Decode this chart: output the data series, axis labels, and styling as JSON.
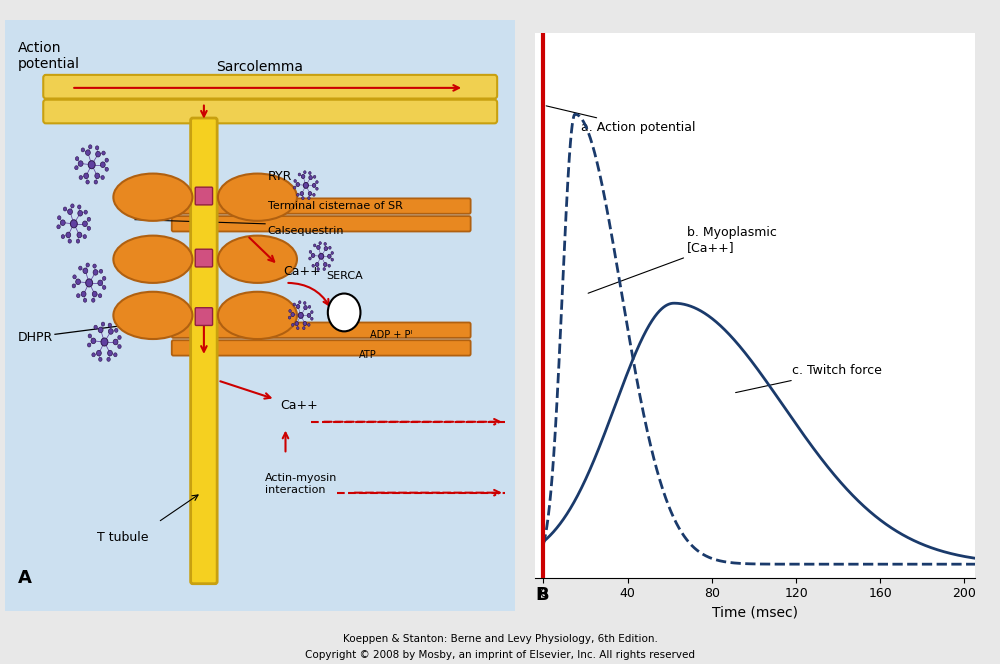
{
  "bg_color": "#cce0f0",
  "panel_bg": "#ffffff",
  "fig_bg": "#e8e8e8",
  "label_fontsize": 9,
  "small_fontsize": 8,
  "curve_color": "#1a3a6b",
  "ap_color": "#cc0000",
  "sarco_color": "#f0d050",
  "sarco_edge": "#c8a010",
  "sr_color": "#e88820",
  "sr_edge": "#b06010",
  "tt_color": "#f5d020",
  "tt_edge": "#c8a010",
  "purple": "#6040a0",
  "pink": "#d05080",
  "xlabel": "Time (msec)",
  "xticks": [
    0,
    40,
    80,
    120,
    160,
    200
  ],
  "label_a": "a. Action potential",
  "label_b": "b. Myoplasmic\n[Ca++]",
  "label_c": "c. Twitch force",
  "panel_a_label": "A",
  "panel_b_label": "B",
  "sarcolemma_label": "Sarcolemma",
  "ap_label": "Action\npotential",
  "ryr_label": "RYR",
  "terminal_label": "Terminal cisternae of SR",
  "calseq_label": "Calsequestrin",
  "ca_label1": "Ca++",
  "ca_label2": "Ca++",
  "serca_label": "SERCA",
  "adp_label": "ADP + Pᴵ",
  "atp_label": "ATP",
  "dhpr_label": "DHPR",
  "ttubule_label": "T tubule",
  "actin_label": "Actin-myosin\ninteraction",
  "footer1": "Koeppen & Stanton: Berne and Levy Physiology, 6th Edition.",
  "footer2": "Copyright © 2008 by Mosby, an imprint of Elsevier, Inc. All rights reserved"
}
